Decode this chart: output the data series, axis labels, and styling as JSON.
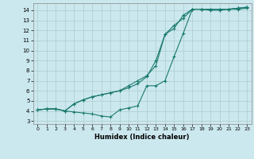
{
  "xlabel": "Humidex (Indice chaleur)",
  "bg_color": "#cce8ef",
  "grid_color": "#aacccc",
  "line_color": "#1a7a6e",
  "xlim": [
    -0.5,
    23.5
  ],
  "ylim": [
    2.7,
    14.7
  ],
  "xticks": [
    0,
    1,
    2,
    3,
    4,
    5,
    6,
    7,
    8,
    9,
    10,
    11,
    12,
    13,
    14,
    15,
    16,
    17,
    18,
    19,
    20,
    21,
    22,
    23
  ],
  "yticks": [
    3,
    4,
    5,
    6,
    7,
    8,
    9,
    10,
    11,
    12,
    13,
    14
  ],
  "line1_x": [
    0,
    1,
    2,
    3,
    4,
    5,
    6,
    7,
    8,
    9,
    10,
    11,
    12,
    13,
    14,
    15,
    16,
    17,
    18,
    19,
    20,
    21,
    22,
    23
  ],
  "line1_y": [
    4.1,
    4.2,
    4.2,
    4.0,
    3.9,
    3.8,
    3.7,
    3.5,
    3.4,
    4.1,
    4.3,
    4.5,
    6.5,
    6.5,
    7.0,
    9.4,
    11.7,
    14.1,
    14.1,
    14.0,
    14.0,
    14.1,
    14.1,
    14.2
  ],
  "line2_x": [
    0,
    1,
    2,
    3,
    4,
    5,
    6,
    7,
    8,
    9,
    10,
    11,
    12,
    13,
    14,
    15,
    16,
    17,
    18,
    19,
    20,
    21,
    22,
    23
  ],
  "line2_y": [
    4.1,
    4.2,
    4.2,
    4.0,
    4.7,
    5.1,
    5.4,
    5.6,
    5.8,
    6.0,
    6.5,
    7.0,
    7.5,
    8.5,
    11.6,
    12.2,
    13.5,
    14.1,
    14.1,
    14.1,
    14.1,
    14.1,
    14.2,
    14.3
  ],
  "line3_x": [
    0,
    1,
    2,
    3,
    4,
    5,
    6,
    7,
    8,
    9,
    10,
    11,
    12,
    13,
    14,
    15,
    16,
    17,
    18,
    19,
    20,
    21,
    22,
    23
  ],
  "line3_y": [
    4.1,
    4.2,
    4.2,
    4.0,
    4.7,
    5.1,
    5.4,
    5.6,
    5.8,
    6.0,
    6.3,
    6.7,
    7.4,
    9.0,
    11.6,
    12.5,
    13.2,
    14.1,
    14.1,
    14.1,
    14.1,
    14.1,
    14.2,
    14.3
  ]
}
